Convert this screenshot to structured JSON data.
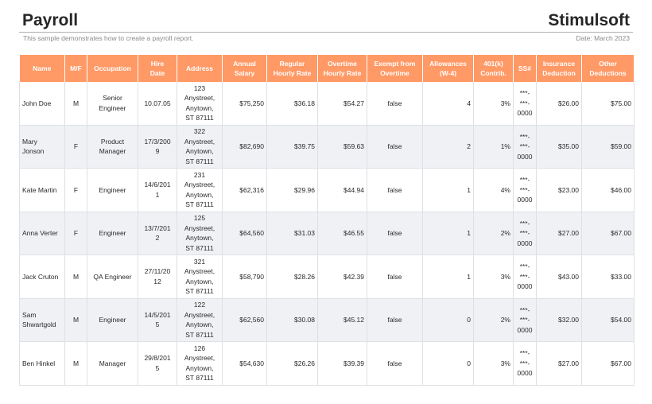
{
  "header": {
    "title": "Payroll",
    "brand": "Stimulsoft",
    "subtitle": "This sample demonstrates how to create a payroll report.",
    "date": "Date: March 2023"
  },
  "colors": {
    "header_bg": "#ff9966",
    "alt_row": "#eff1f5"
  },
  "columns": [
    "Name",
    "M/F",
    "Occupation",
    "Hire\nDate",
    "Address",
    "Annual\nSalary",
    "Regular\nHourly Rate",
    "Overtime\nHourly Rate",
    "Exempt from\nOvertime",
    "Allowances\n(W-4)",
    "401(k)\nContrib.",
    "SS#",
    "Insurance\nDeduction",
    "Other\nDeductions"
  ],
  "rows": [
    {
      "name": "John Doe",
      "sex": "M",
      "occupation": "Senior\nEngineer",
      "hire_date": "10.07.05",
      "address": "123\nAnystreet,\nAnytown,\nST 87111",
      "annual_salary": "$75,250",
      "regular_rate": "$36.18",
      "overtime_rate": "$54.27",
      "exempt": "false",
      "allowances": "4",
      "contrib_401k": "3%",
      "ssn": "***-\n***-\n0000",
      "insurance": "$26.00",
      "other": "$75.00"
    },
    {
      "name": "Mary\nJonson",
      "sex": "F",
      "occupation": "Product\nManager",
      "hire_date": "17/3/200\n9",
      "address": "322\nAnystreet,\nAnytown,\nST 87111",
      "annual_salary": "$82,690",
      "regular_rate": "$39.75",
      "overtime_rate": "$59.63",
      "exempt": "false",
      "allowances": "2",
      "contrib_401k": "1%",
      "ssn": "***-\n***-\n0000",
      "insurance": "$35.00",
      "other": "$59.00"
    },
    {
      "name": "Kate Martin",
      "sex": "F",
      "occupation": "Engineer",
      "hire_date": "14/6/201\n1",
      "address": "231\nAnystreet,\nAnytown,\nST 87111",
      "annual_salary": "$62,316",
      "regular_rate": "$29.96",
      "overtime_rate": "$44.94",
      "exempt": "false",
      "allowances": "1",
      "contrib_401k": "4%",
      "ssn": "***-\n***-\n0000",
      "insurance": "$23.00",
      "other": "$46.00"
    },
    {
      "name": "Anna Verter",
      "sex": "F",
      "occupation": "Engineer",
      "hire_date": "13/7/201\n2",
      "address": "125\nAnystreet,\nAnytown,\nST 87111",
      "annual_salary": "$64,560",
      "regular_rate": "$31.03",
      "overtime_rate": "$46.55",
      "exempt": "false",
      "allowances": "1",
      "contrib_401k": "2%",
      "ssn": "***-\n***-\n0000",
      "insurance": "$27.00",
      "other": "$67.00"
    },
    {
      "name": "Jack Cruton",
      "sex": "M",
      "occupation": "QA Engineer",
      "hire_date": "27/11/20\n12",
      "address": "321\nAnystreet,\nAnytown,\nST 87111",
      "annual_salary": "$58,790",
      "regular_rate": "$28.26",
      "overtime_rate": "$42.39",
      "exempt": "false",
      "allowances": "1",
      "contrib_401k": "3%",
      "ssn": "***-\n***-\n0000",
      "insurance": "$43.00",
      "other": "$33.00"
    },
    {
      "name": "Sam\nShwartgold",
      "sex": "M",
      "occupation": "Engineer",
      "hire_date": "14/5/201\n5",
      "address": "122\nAnystreet,\nAnytown,\nST 87111",
      "annual_salary": "$62,560",
      "regular_rate": "$30.08",
      "overtime_rate": "$45.12",
      "exempt": "false",
      "allowances": "0",
      "contrib_401k": "2%",
      "ssn": "***-\n***-\n0000",
      "insurance": "$32.00",
      "other": "$54.00"
    },
    {
      "name": "Ben Hinkel",
      "sex": "M",
      "occupation": "Manager",
      "hire_date": "29/8/201\n5",
      "address": "126\nAnystreet,\nAnytown,\nST 87111",
      "annual_salary": "$54,630",
      "regular_rate": "$26.26",
      "overtime_rate": "$39.39",
      "exempt": "false",
      "allowances": "0",
      "contrib_401k": "3%",
      "ssn": "***-\n***-\n0000",
      "insurance": "$27.00",
      "other": "$67.00"
    }
  ]
}
